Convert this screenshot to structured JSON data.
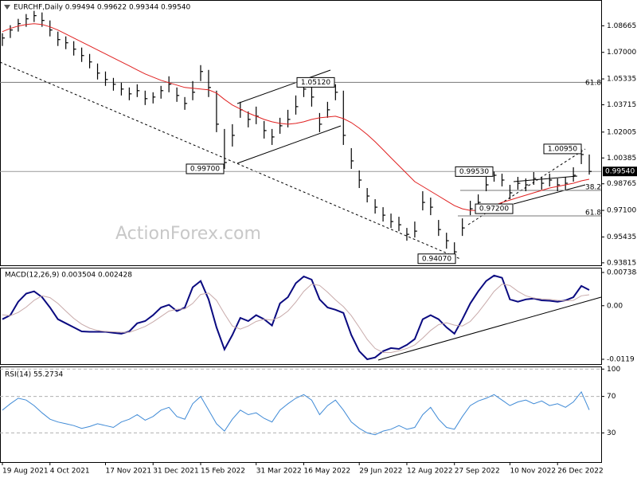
{
  "chart_data": [
    {
      "type": "ohlc",
      "title": "EURCHF,Daily  0.99494 0.99622 0.99344 0.99540",
      "ylim": [
        0.9366,
        1.1028
      ],
      "yticks": [
        1.08665,
        {
          "value": 1.07,
          "label": "1.07000"
        },
        1.05335,
        1.03715,
        1.02005,
        1.00385,
        0.98765,
        {
          "value": 0.971,
          "label": "0.97100"
        },
        0.95435,
        0.93815
      ],
      "grid": false,
      "bar_color": "#000000",
      "high": [
        1.082,
        1.087,
        1.091,
        1.094,
        1.096,
        1.095,
        1.09,
        1.083,
        1.08,
        1.077,
        1.073,
        1.069,
        1.063,
        1.058,
        1.054,
        1.051,
        1.048,
        1.05,
        1.046,
        1.045,
        1.049,
        1.055,
        1.048,
        1.042,
        1.052,
        1.062,
        1.059,
        1.046,
        1.022,
        1.025,
        1.039,
        1.033,
        1.036,
        1.027,
        1.022,
        1.029,
        1.034,
        1.043,
        1.0512,
        1.05,
        1.032,
        1.039,
        1.05,
        1.046,
        1.01,
        0.996,
        0.985,
        0.978,
        0.973,
        0.969,
        0.967,
        0.96,
        0.964,
        0.983,
        0.979,
        0.965,
        0.957,
        0.951,
        0.966,
        0.977,
        0.981,
        0.992,
        0.9953,
        0.994,
        0.987,
        0.992,
        0.991,
        0.995,
        0.992,
        0.994,
        0.991,
        0.992,
        0.998,
        1.0095,
        1.006
      ],
      "low": [
        1.074,
        1.079,
        1.083,
        1.086,
        1.089,
        1.086,
        1.08,
        1.074,
        1.072,
        1.068,
        1.064,
        1.06,
        1.053,
        1.049,
        1.046,
        1.043,
        1.04,
        1.042,
        1.037,
        1.038,
        1.041,
        1.045,
        1.039,
        1.034,
        1.04,
        1.052,
        1.042,
        1.02,
        0.997,
        1.011,
        1.029,
        1.023,
        1.025,
        1.016,
        1.012,
        1.019,
        1.023,
        1.031,
        1.042,
        1.036,
        1.02,
        1.029,
        1.04,
        1.012,
        0.997,
        0.985,
        0.976,
        0.969,
        0.964,
        0.96,
        0.958,
        0.952,
        0.954,
        0.971,
        0.968,
        0.955,
        0.947,
        0.9407,
        0.955,
        0.968,
        0.972,
        0.983,
        0.989,
        0.986,
        0.978,
        0.984,
        0.983,
        0.987,
        0.984,
        0.986,
        0.983,
        0.984,
        0.989,
        1.0,
        0.9934
      ],
      "close": [
        1.079,
        1.084,
        1.088,
        1.091,
        1.093,
        1.09,
        1.084,
        1.078,
        1.076,
        1.072,
        1.068,
        1.064,
        1.057,
        1.053,
        1.05,
        1.047,
        1.044,
        1.046,
        1.041,
        1.042,
        1.046,
        1.05,
        1.043,
        1.038,
        1.045,
        1.058,
        1.048,
        1.025,
        1.001,
        1.018,
        1.034,
        1.028,
        1.03,
        1.021,
        1.017,
        1.024,
        1.028,
        1.036,
        1.047,
        1.042,
        1.025,
        1.034,
        1.045,
        1.018,
        1.002,
        0.99,
        0.98,
        0.973,
        0.968,
        0.964,
        0.962,
        0.956,
        0.958,
        0.976,
        0.973,
        0.959,
        0.952,
        0.945,
        0.96,
        0.972,
        0.976,
        0.987,
        0.993,
        0.99,
        0.982,
        0.988,
        0.987,
        0.991,
        0.988,
        0.99,
        0.987,
        0.988,
        0.993,
        1.006,
        0.9954
      ],
      "ma": {
        "color": "#e02020",
        "values": [
          1.083,
          1.085,
          1.0865,
          1.0875,
          1.088,
          1.0875,
          1.086,
          1.084,
          1.0815,
          1.079,
          1.0765,
          1.074,
          1.0715,
          1.069,
          1.0665,
          1.064,
          1.0615,
          1.059,
          1.0565,
          1.0545,
          1.0525,
          1.051,
          1.0495,
          1.048,
          1.0475,
          1.047,
          1.0465,
          1.0445,
          1.0405,
          1.037,
          1.0345,
          1.032,
          1.03,
          1.028,
          1.0265,
          1.0255,
          1.025,
          1.0255,
          1.0265,
          1.028,
          1.029,
          1.0295,
          1.03,
          1.0285,
          1.026,
          1.0225,
          1.0185,
          1.014,
          1.009,
          1.004,
          0.999,
          0.994,
          0.989,
          0.986,
          0.983,
          0.98,
          0.977,
          0.974,
          0.972,
          0.971,
          0.971,
          0.972,
          0.974,
          0.976,
          0.9775,
          0.979,
          0.9805,
          0.982,
          0.9835,
          0.985,
          0.986,
          0.987,
          0.988,
          0.9895,
          0.9905
        ]
      },
      "annotations": [
        {
          "value": 1.0512,
          "label": "1.05120"
        },
        {
          "value": 0.997,
          "label": "0.99700"
        },
        {
          "value": 0.9407,
          "label": "0.94070"
        },
        {
          "value": 0.9953,
          "label": "0.99530"
        },
        {
          "value": 0.972,
          "label": "0.97200"
        },
        {
          "value": 1.0095,
          "label": "1.00950"
        }
      ],
      "fib_labels": [
        "61.8",
        "38.2",
        "61.8"
      ],
      "current_price": {
        "value": 0.9954,
        "label": "0.99540"
      },
      "watermark": "ActionForex.com"
    },
    {
      "type": "line",
      "title": "MACD(12,26,9) 0.003504 0.002428",
      "ylim": [
        -0.01296,
        0.00845
      ],
      "yticks": [
        0.007384,
        {
          "value": 0,
          "label": "0.00"
        },
        -0.0119
      ],
      "grid": false,
      "series": [
        {
          "color": "#0a0a80",
          "width": 2,
          "values": [
            -0.003,
            -0.0021,
            0.0009,
            0.0027,
            0.0032,
            0.0019,
            -0.0004,
            -0.003,
            -0.0039,
            -0.0048,
            -0.0057,
            -0.0058,
            -0.0058,
            -0.0058,
            -0.006,
            -0.0062,
            -0.0057,
            -0.0039,
            -0.0034,
            -0.0021,
            -0.0004,
            0.0002,
            -0.0012,
            -0.0004,
            0.0041,
            0.0055,
            0.0014,
            -0.0048,
            -0.0097,
            -0.0065,
            -0.0027,
            -0.0034,
            -0.0021,
            -0.003,
            -0.0044,
            0.0005,
            0.0019,
            0.005,
            0.0065,
            0.0058,
            0.0014,
            -0.0004,
            -0.0009,
            -0.0016,
            -0.0065,
            -0.0101,
            -0.0119,
            -0.0115,
            -0.0101,
            -0.0094,
            -0.0096,
            -0.0087,
            -0.0074,
            -0.003,
            -0.0021,
            -0.003,
            -0.0048,
            -0.0062,
            -0.003,
            0.0005,
            0.0032,
            0.0055,
            0.0067,
            0.0062,
            0.0014,
            0.0009,
            0.0014,
            0.0016,
            0.0012,
            0.0011,
            0.0009,
            0.0012,
            0.0019,
            0.0044,
            0.003504
          ]
        },
        {
          "color": "#c8aaaa",
          "width": 1,
          "values": [
            -0.002,
            -0.0022,
            -0.0015,
            -0.0003,
            0.0012,
            0.0022,
            0.0018,
            0.0005,
            -0.0012,
            -0.0028,
            -0.0041,
            -0.005,
            -0.0055,
            -0.0057,
            -0.0058,
            -0.0059,
            -0.0059,
            -0.0053,
            -0.0046,
            -0.0036,
            -0.0024,
            -0.0012,
            -0.0008,
            -0.0007,
            0.0005,
            0.0025,
            0.0028,
            0.0012,
            -0.0018,
            -0.0045,
            -0.0052,
            -0.0045,
            -0.0035,
            -0.003,
            -0.0032,
            -0.0025,
            -0.0012,
            0.0008,
            0.0032,
            0.0048,
            0.0045,
            0.003,
            0.0013,
            -0.0002,
            -0.0022,
            -0.0048,
            -0.0075,
            -0.0095,
            -0.0104,
            -0.0104,
            -0.01,
            -0.0095,
            -0.0087,
            -0.0072,
            -0.0055,
            -0.0042,
            -0.0038,
            -0.0043,
            -0.0045,
            -0.0035,
            -0.0015,
            0.0008,
            0.0032,
            0.0048,
            0.0045,
            0.0032,
            0.0022,
            0.0017,
            0.0015,
            0.0014,
            0.0012,
            0.0011,
            0.0012,
            0.0022,
            0.002428
          ]
        }
      ]
    },
    {
      "type": "line",
      "title": "RSI(14) 55.2734",
      "ylim": [
        -2,
        102
      ],
      "yticks": [
        100,
        70,
        30
      ],
      "grid": true,
      "grid_color": "#b0b0b0",
      "categories": [
        "19 Aug 2021",
        null,
        null,
        null,
        null,
        null,
        "4 Oct 2021",
        null,
        null,
        null,
        null,
        null,
        null,
        "17 Nov 2021",
        null,
        null,
        null,
        null,
        null,
        "31 Dec 2021",
        null,
        null,
        null,
        null,
        null,
        "15 Feb 2022",
        null,
        null,
        null,
        null,
        null,
        null,
        "31 Mar 2022",
        null,
        null,
        null,
        null,
        null,
        "16 May 2022",
        null,
        null,
        null,
        null,
        null,
        null,
        "29 Jun 2022",
        null,
        null,
        null,
        null,
        null,
        "12 Aug 2022",
        null,
        null,
        null,
        null,
        null,
        "27 Sep 2022",
        null,
        null,
        null,
        null,
        null,
        null,
        "10 Nov 2022",
        null,
        null,
        null,
        null,
        null,
        "26 Dec 2022",
        null,
        null,
        null,
        null
      ],
      "series": [
        {
          "color": "#3f8ad6",
          "width": 1,
          "values": [
            55,
            62,
            68,
            66,
            60,
            52,
            45,
            42,
            40,
            38,
            35,
            37,
            40,
            38,
            36,
            42,
            45,
            50,
            44,
            48,
            55,
            58,
            48,
            45,
            62,
            70,
            55,
            40,
            32,
            45,
            55,
            50,
            52,
            46,
            42,
            55,
            62,
            68,
            72,
            66,
            50,
            60,
            66,
            55,
            42,
            35,
            30,
            28,
            32,
            34,
            38,
            34,
            36,
            50,
            58,
            45,
            36,
            34,
            48,
            60,
            65,
            68,
            72,
            66,
            60,
            64,
            66,
            62,
            65,
            60,
            62,
            58,
            64,
            75,
            55.2734
          ]
        }
      ]
    }
  ]
}
